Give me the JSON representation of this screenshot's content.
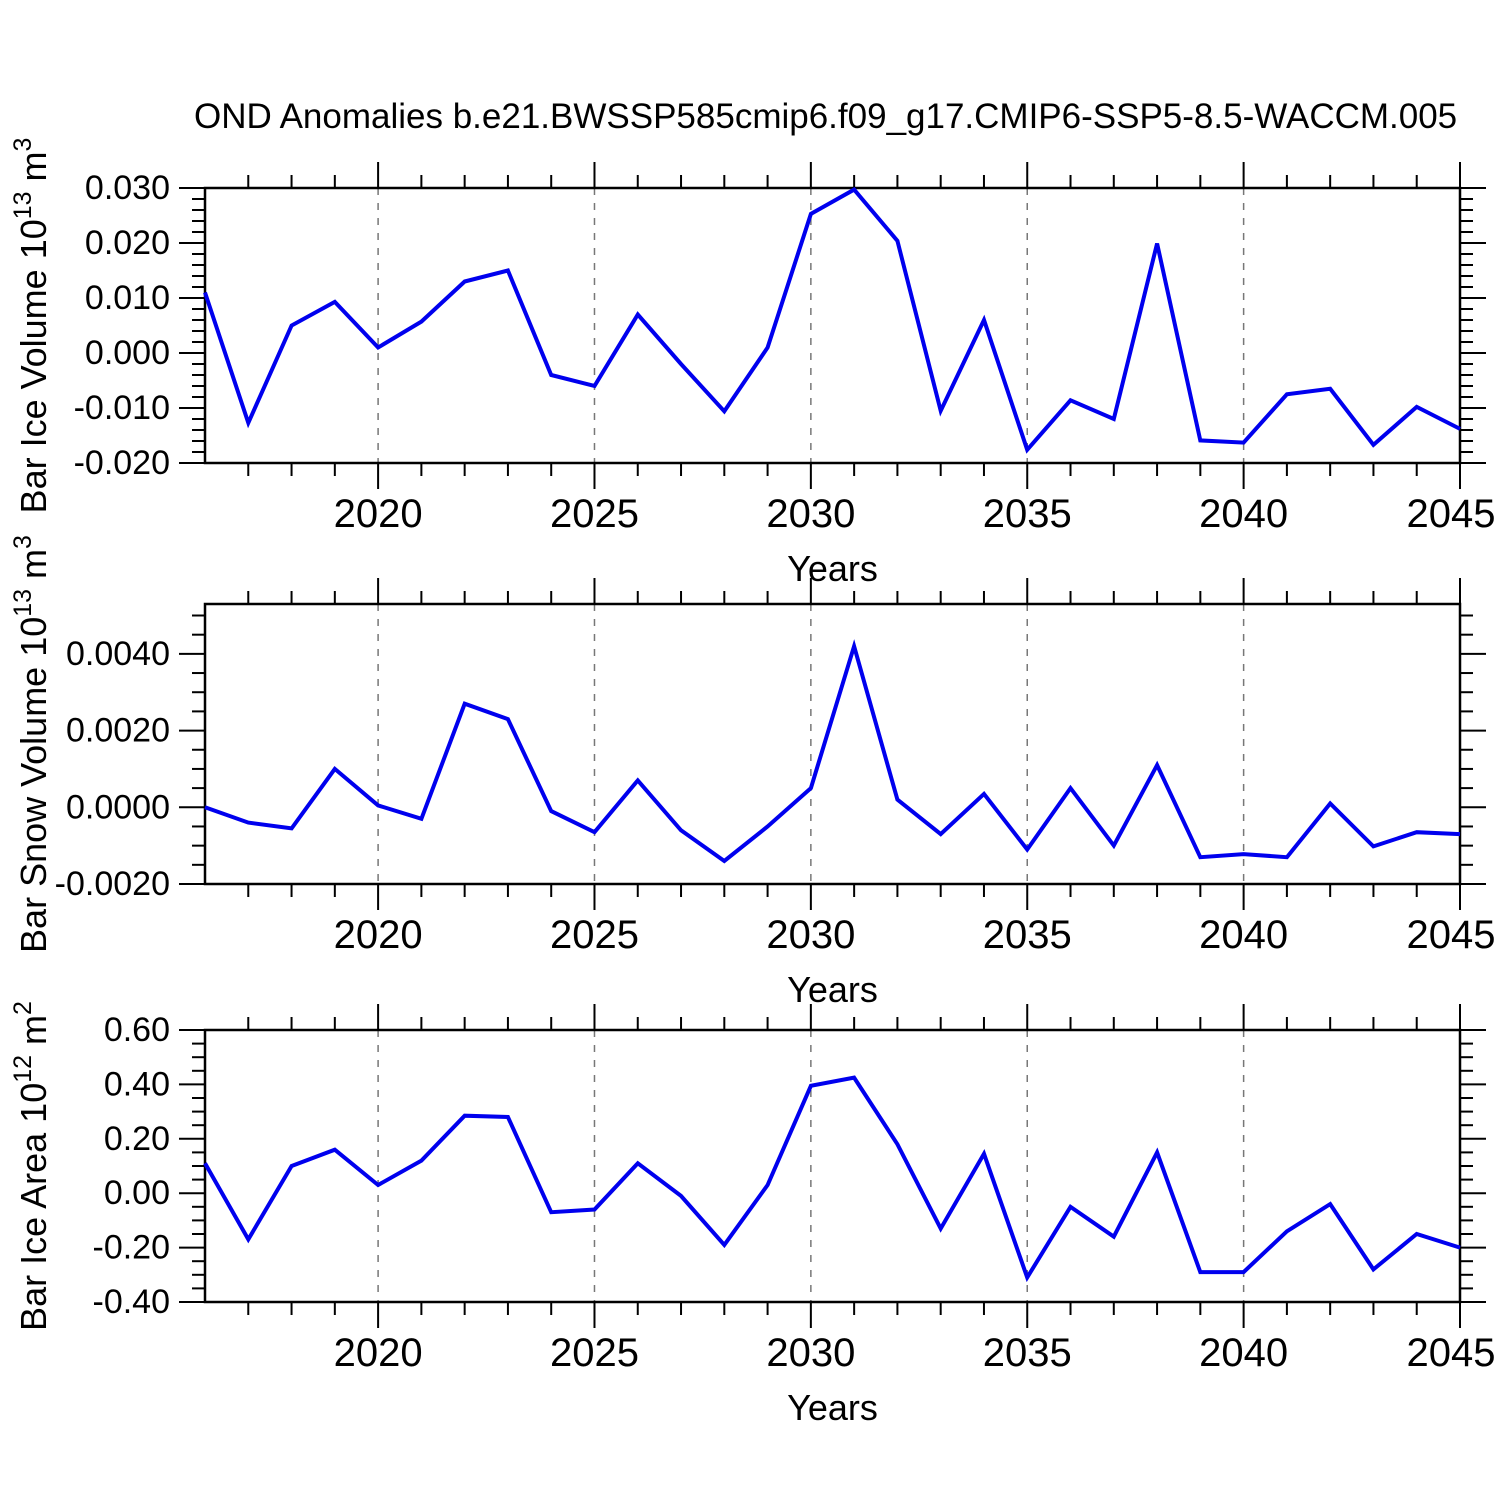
{
  "title": "OND Anomalies b.e21.BWSSP585cmip6.f09_g17.CMIP6-SSP5-8.5-WACCM.005",
  "colors": {
    "line": "#0000ee",
    "axis": "#000000",
    "grid": "#777777",
    "background": "#ffffff"
  },
  "x_axis": {
    "label": "Years",
    "xlim": [
      2016,
      2045
    ],
    "major_ticks": [
      2020,
      2025,
      2030,
      2035,
      2040,
      2045
    ],
    "gridline_years": [
      2020,
      2025,
      2030,
      2035,
      2040
    ]
  },
  "chart_data": [
    {
      "type": "line",
      "ylabel": "Bar Ice Volume 10^13 m^3",
      "ylabel_segments": [
        {
          "t": "Bar Ice Volume 10",
          "sup": false
        },
        {
          "t": "13",
          "sup": true
        },
        {
          "t": " m",
          "sup": false
        },
        {
          "t": "3",
          "sup": true
        }
      ],
      "xlabel": "Years",
      "ylim": [
        -0.02,
        0.03
      ],
      "ytick_major": [
        0.03,
        0.02,
        0.01,
        0.0,
        -0.01,
        -0.02
      ],
      "ytick_labels": [
        "0.030",
        "0.020",
        "0.010",
        "0.000",
        "-0.010",
        "-0.020"
      ],
      "ytick_minor_step": 0.002,
      "x": [
        2016,
        2017,
        2018,
        2019,
        2020,
        2021,
        2022,
        2023,
        2024,
        2025,
        2026,
        2027,
        2028,
        2029,
        2030,
        2031,
        2032,
        2033,
        2034,
        2035,
        2036,
        2037,
        2038,
        2039,
        2040,
        2041,
        2042,
        2043,
        2044,
        2045
      ],
      "values": [
        0.011,
        -0.0127,
        0.005,
        0.0093,
        0.001,
        0.0057,
        0.013,
        0.015,
        -0.004,
        -0.006,
        0.007,
        -0.002,
        -0.0106,
        0.001,
        0.0253,
        0.0297,
        0.0204,
        -0.0105,
        0.006,
        -0.0176,
        -0.0086,
        -0.012,
        0.0199,
        -0.0159,
        -0.0163,
        -0.0075,
        -0.0065,
        -0.0167,
        -0.0098,
        -0.0138
      ]
    },
    {
      "type": "line",
      "ylabel": "Bar Snow Volume 10^13 m^3",
      "ylabel_segments": [
        {
          "t": "Bar Snow Volume 10",
          "sup": false
        },
        {
          "t": "13",
          "sup": true
        },
        {
          "t": " m",
          "sup": false
        },
        {
          "t": "3",
          "sup": true
        }
      ],
      "xlabel": "Years",
      "ylim": [
        -0.002,
        0.0053
      ],
      "ytick_major": [
        0.004,
        0.002,
        0.0,
        -0.002
      ],
      "ytick_labels": [
        "0.0040",
        "0.0020",
        "0.0000",
        "-0.0020"
      ],
      "ytick_minor_step": 0.0005,
      "x": [
        2016,
        2017,
        2018,
        2019,
        2020,
        2021,
        2022,
        2023,
        2024,
        2025,
        2026,
        2027,
        2028,
        2029,
        2030,
        2031,
        2032,
        2033,
        2034,
        2035,
        2036,
        2037,
        2038,
        2039,
        2040,
        2041,
        2042,
        2043,
        2044,
        2045
      ],
      "values": [
        0.0,
        -0.0004,
        -0.00055,
        0.001,
        5e-05,
        -0.0003,
        0.0027,
        0.0023,
        -0.0001,
        -0.00065,
        0.0007,
        -0.0006,
        -0.0014,
        -0.0005,
        0.0005,
        0.0042,
        0.0002,
        -0.0007,
        0.00035,
        -0.0011,
        0.0005,
        -0.001,
        0.0011,
        -0.0013,
        -0.00122,
        -0.0013,
        0.0001,
        -0.00102,
        -0.00065,
        -0.0007
      ]
    },
    {
      "type": "line",
      "ylabel": "Bar Ice Area 10^12 m^2",
      "ylabel_segments": [
        {
          "t": "Bar Ice Area 10",
          "sup": false
        },
        {
          "t": "12",
          "sup": true
        },
        {
          "t": " m",
          "sup": false
        },
        {
          "t": "2",
          "sup": true
        }
      ],
      "xlabel": "Years",
      "ylim": [
        -0.4,
        0.6
      ],
      "ytick_major": [
        0.6,
        0.4,
        0.2,
        0.0,
        -0.2,
        -0.4
      ],
      "ytick_labels": [
        "0.60",
        "0.40",
        "0.20",
        "0.00",
        "-0.20",
        "-0.40"
      ],
      "ytick_minor_step": 0.05,
      "x": [
        2016,
        2017,
        2018,
        2019,
        2020,
        2021,
        2022,
        2023,
        2024,
        2025,
        2026,
        2027,
        2028,
        2029,
        2030,
        2031,
        2032,
        2033,
        2034,
        2035,
        2036,
        2037,
        2038,
        2039,
        2040,
        2041,
        2042,
        2043,
        2044,
        2045
      ],
      "values": [
        0.11,
        -0.17,
        0.1,
        0.16,
        0.03,
        0.12,
        0.285,
        0.28,
        -0.07,
        -0.06,
        0.11,
        -0.01,
        -0.19,
        0.03,
        0.395,
        0.425,
        0.18,
        -0.13,
        0.145,
        -0.31,
        -0.05,
        -0.16,
        0.15,
        -0.29,
        -0.29,
        -0.14,
        -0.04,
        -0.28,
        -0.15,
        -0.2
      ]
    }
  ]
}
